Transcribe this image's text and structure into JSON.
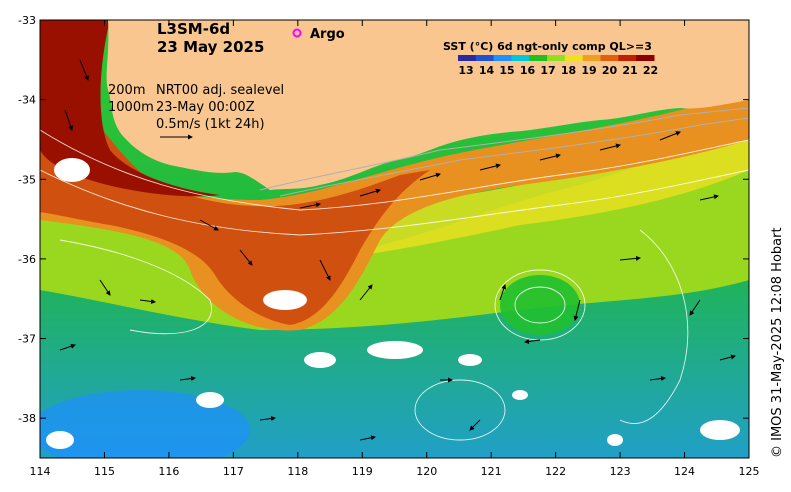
{
  "map": {
    "product": "L3SM-6d",
    "date": "23 May 2025",
    "argo_label": "Argo",
    "sst_legend_title": "SST (°C) 6d ngt-only comp QL>=3",
    "colorbar": {
      "ticks": [
        "13",
        "14",
        "15",
        "16",
        "17",
        "18",
        "19",
        "20",
        "21",
        "22"
      ],
      "colors": [
        "#2a2aa0",
        "#1e50d8",
        "#1e90ff",
        "#00c8d8",
        "#20c020",
        "#90e020",
        "#f0e020",
        "#f0a020",
        "#e06010",
        "#c02000",
        "#8b0000"
      ]
    },
    "contour_legend": {
      "line1": "200m",
      "line2": "1000m",
      "sealevel_label": "NRT00 adj. sealevel",
      "time_label": "23-May 00:00Z",
      "vector_label": "0.5m/s (1kt 24h)"
    },
    "x_axis": {
      "labels": [
        "114",
        "115",
        "116",
        "117",
        "118",
        "119",
        "120",
        "121",
        "122",
        "123",
        "124",
        "125"
      ],
      "range": [
        114,
        125
      ]
    },
    "y_axis": {
      "labels": [
        "-33",
        "-34",
        "-35",
        "-36",
        "-37",
        "-38"
      ],
      "range": [
        -33,
        -38.5
      ]
    },
    "credit": "© IMOS 31-May-2025 12:08 Hobart",
    "colors": {
      "land": "#f9c690",
      "argo_marker": "#ff00ff"
    }
  }
}
